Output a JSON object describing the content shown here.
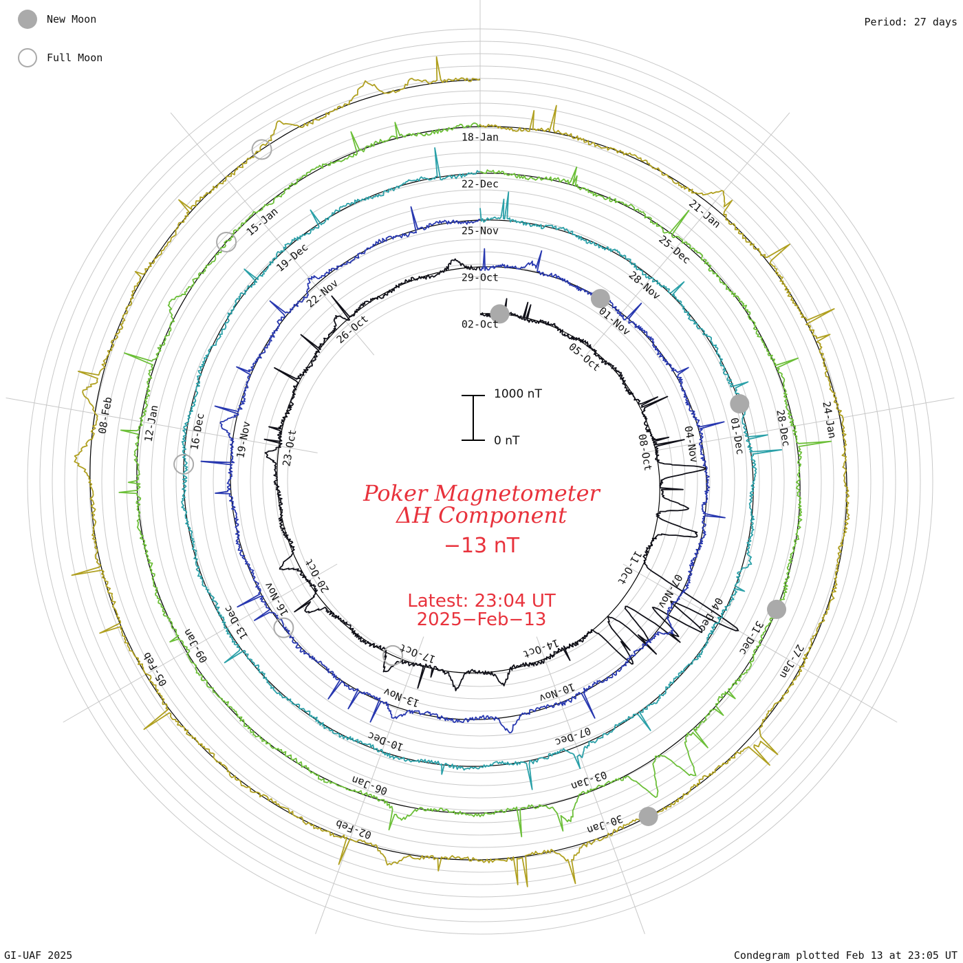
{
  "legend": {
    "new_moon_label": "New Moon",
    "full_moon_label": "Full Moon"
  },
  "period_text": "Period: 27 days",
  "center": {
    "title_line1": "Poker Magnetometer",
    "title_line2": "ΔH Component",
    "current_value": "−13 nT",
    "latest_line": "Latest: 23:04 UT",
    "date_line": "2025−Feb−13"
  },
  "scale_bar": {
    "top_label": "1000 nT",
    "bottom_label": "0 nT"
  },
  "footer": {
    "left": "GI-UAF 2025",
    "right": "Condegram plotted Feb 13 at 23:05 UT"
  },
  "colors": {
    "grid": "#c8c8c8",
    "baseline": "#000000",
    "title": "#e8323c",
    "moon": "#aaaaaa",
    "turn_colors": [
      "#101018",
      "#2838b0",
      "#2aa0a8",
      "#6cbf38",
      "#b0a020",
      "#c0801a",
      "#b81818"
    ]
  },
  "chart_data": {
    "type": "condegram-spiral",
    "period_days": 27,
    "units": "nT",
    "date_labels": [
      {
        "text": "02-Oct",
        "day": 0
      },
      {
        "text": "05-Oct",
        "day": 3
      },
      {
        "text": "08-Oct",
        "day": 6
      },
      {
        "text": "11-Oct",
        "day": 9
      },
      {
        "text": "14-Oct",
        "day": 12
      },
      {
        "text": "17-Oct",
        "day": 15
      },
      {
        "text": "20-Oct",
        "day": 18
      },
      {
        "text": "23-Oct",
        "day": 21
      },
      {
        "text": "26-Oct",
        "day": 24
      },
      {
        "text": "29-Oct",
        "day": 27
      },
      {
        "text": "01-Nov",
        "day": 30
      },
      {
        "text": "04-Nov",
        "day": 33
      },
      {
        "text": "07-Nov",
        "day": 36
      },
      {
        "text": "10-Nov",
        "day": 39
      },
      {
        "text": "13-Nov",
        "day": 42
      },
      {
        "text": "16-Nov",
        "day": 45
      },
      {
        "text": "19-Nov",
        "day": 48
      },
      {
        "text": "22-Nov",
        "day": 51
      },
      {
        "text": "25-Nov",
        "day": 54
      },
      {
        "text": "28-Nov",
        "day": 57
      },
      {
        "text": "01-Dec",
        "day": 60
      },
      {
        "text": "04-Dec",
        "day": 63
      },
      {
        "text": "07-Dec",
        "day": 66
      },
      {
        "text": "10-Dec",
        "day": 69
      },
      {
        "text": "13-Dec",
        "day": 72
      },
      {
        "text": "16-Dec",
        "day": 75
      },
      {
        "text": "19-Dec",
        "day": 78
      },
      {
        "text": "22-Dec",
        "day": 81
      },
      {
        "text": "25-Dec",
        "day": 84
      },
      {
        "text": "28-Dec",
        "day": 87
      },
      {
        "text": "31-Dec",
        "day": 90
      },
      {
        "text": "03-Jan",
        "day": 93
      },
      {
        "text": "06-Jan",
        "day": 96
      },
      {
        "text": "09-Jan",
        "day": 99
      },
      {
        "text": "12-Jan",
        "day": 102
      },
      {
        "text": "15-Jan",
        "day": 105
      },
      {
        "text": "18-Jan",
        "day": 108
      },
      {
        "text": "21-Jan",
        "day": 111
      },
      {
        "text": "24-Jan",
        "day": 114
      },
      {
        "text": "27-Jan",
        "day": 117
      },
      {
        "text": "30-Jan",
        "day": 120
      },
      {
        "text": "02-Feb",
        "day": 123
      },
      {
        "text": "05-Feb",
        "day": 126
      },
      {
        "text": "08-Feb",
        "day": 129
      }
    ],
    "new_moons_day": [
      0.5,
      29.5,
      59.5,
      89.5,
      119.5
    ],
    "full_moons_day": [
      15.5,
      44.5,
      74.5,
      104.5,
      132.5
    ],
    "disturbances": [
      {
        "day": 6.5,
        "nT": -1050
      },
      {
        "day": 7.3,
        "nT": -650
      },
      {
        "day": 7.8,
        "nT": -950
      },
      {
        "day": 9.0,
        "nT": -2500
      },
      {
        "day": 9.3,
        "nT": -1900
      },
      {
        "day": 9.6,
        "nT": -1500
      },
      {
        "day": 10.0,
        "nT": -1000
      },
      {
        "day": 10.5,
        "nT": -1200
      },
      {
        "day": 13.0,
        "nT": -300
      },
      {
        "day": 14.0,
        "nT": -350
      },
      {
        "day": 15.5,
        "nT": -400
      },
      {
        "day": 17.5,
        "nT": -450
      },
      {
        "day": 18.5,
        "nT": -380
      },
      {
        "day": 20.8,
        "nT": -300
      },
      {
        "day": 23.9,
        "nT": -260
      },
      {
        "day": 26.5,
        "nT": -180
      },
      {
        "day": 28.0,
        "nT": -220
      },
      {
        "day": 36.6,
        "nT": -280
      },
      {
        "day": 40.0,
        "nT": -300
      },
      {
        "day": 42.0,
        "nT": -220
      },
      {
        "day": 48.2,
        "nT": -300
      },
      {
        "day": 51.0,
        "nT": -180
      },
      {
        "day": 62.0,
        "nT": -200
      },
      {
        "day": 66.0,
        "nT": -250
      },
      {
        "day": 91.8,
        "nT": -850
      },
      {
        "day": 92.3,
        "nT": -700
      },
      {
        "day": 93.4,
        "nT": -450
      },
      {
        "day": 95.5,
        "nT": -280
      },
      {
        "day": 103.5,
        "nT": -260
      },
      {
        "day": 111.0,
        "nT": -350
      },
      {
        "day": 118.0,
        "nT": -220
      },
      {
        "day": 120.5,
        "nT": -280
      },
      {
        "day": 122.5,
        "nT": -280
      },
      {
        "day": 128.5,
        "nT": -300
      },
      {
        "day": 129.2,
        "nT": -350
      },
      {
        "day": 132.8,
        "nT": -280
      },
      {
        "day": 133.8,
        "nT": -330
      },
      {
        "day": 134.3,
        "nT": -200
      }
    ],
    "start_day": 0,
    "end_day": 135
  }
}
